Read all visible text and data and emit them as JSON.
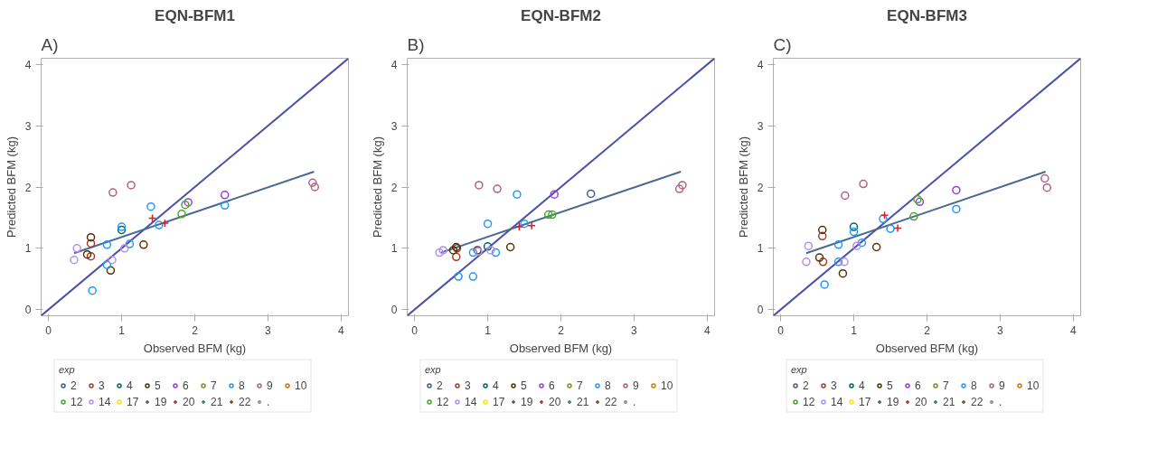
{
  "chart_data": [
    {
      "type": "scatter",
      "title": "EQN-BFM1",
      "annotations": [
        "A)"
      ],
      "xlabel": "Observed BFM (kg)",
      "ylabel": "Predicted BFM (kg)",
      "xlim": [
        -0.1,
        4.1
      ],
      "ylim": [
        -0.1,
        4.1
      ],
      "xticks": [
        0,
        1,
        2,
        3,
        4
      ],
      "yticks": [
        0,
        1,
        2,
        3,
        4
      ],
      "grid": false,
      "legend": "bottom",
      "legend_title": "exp",
      "series": [
        {
          "type": "line",
          "color": "#4a4fa8",
          "x": [
            -0.1,
            4.1
          ],
          "values": [
            -0.1,
            4.1
          ]
        },
        {
          "type": "line",
          "color": "#4a6a94",
          "x": [
            0.35,
            3.63
          ],
          "values": [
            0.92,
            2.25
          ]
        },
        {
          "name": "2",
          "color": "#445694",
          "marker": "circle"
        },
        {
          "name": "3",
          "color": "#a23a2e",
          "marker": "circle",
          "x": [
            0.58,
            0.58
          ],
          "values": [
            1.08,
            0.87
          ]
        },
        {
          "name": "4",
          "color": "#01665e",
          "marker": "circle",
          "x": [
            1.0
          ],
          "values": [
            1.3
          ]
        },
        {
          "name": "5",
          "color": "#543005",
          "marker": "circle",
          "x": [
            0.58,
            0.53,
            0.85,
            1.3
          ],
          "values": [
            1.18,
            0.9,
            0.64,
            1.06
          ]
        },
        {
          "name": "6",
          "color": "#9d3cdb",
          "marker": "circle",
          "x": [
            1.91,
            2.41
          ],
          "values": [
            1.75,
            1.87
          ]
        },
        {
          "name": "7",
          "color": "#7f8e1f",
          "marker": "circle"
        },
        {
          "name": "8",
          "color": "#2597fa",
          "marker": "circle",
          "x": [
            1.4,
            1.0,
            1.51,
            0.8,
            1.11,
            0.8,
            0.6,
            2.41
          ],
          "values": [
            1.68,
            1.35,
            1.38,
            1.06,
            1.07,
            0.73,
            0.31,
            1.7
          ]
        },
        {
          "name": "9",
          "color": "#b26084",
          "marker": "circle",
          "x": [
            0.88,
            1.13,
            3.61,
            3.64
          ],
          "values": [
            1.91,
            2.03,
            2.07,
            2.0
          ]
        },
        {
          "name": "10",
          "color": "#d17800",
          "marker": "circle"
        },
        {
          "name": "12",
          "color": "#47a82a",
          "marker": "circle",
          "x": [
            1.87,
            1.82
          ],
          "values": [
            1.71,
            1.56
          ]
        },
        {
          "name": "14",
          "color": "#b38ef3",
          "marker": "circle",
          "x": [
            0.39,
            0.35,
            0.87,
            1.04
          ],
          "values": [
            1.0,
            0.81,
            0.81,
            1.0
          ]
        },
        {
          "name": "17",
          "color": "#f9e500",
          "marker": "circle"
        },
        {
          "name": "19",
          "color": "#445694",
          "marker": "cross"
        },
        {
          "name": "20",
          "color": "#c8242b",
          "marker": "cross",
          "x": [
            1.42,
            1.59
          ],
          "values": [
            1.49,
            1.41
          ]
        },
        {
          "name": "21",
          "color": "#2e7d6e",
          "marker": "cross"
        },
        {
          "name": "22",
          "color": "#7a4a1a",
          "marker": "cross"
        },
        {
          "name": ".",
          "color": "#999999",
          "marker": "star"
        }
      ]
    },
    {
      "type": "scatter",
      "title": "EQN-BFM2",
      "annotations": [
        "B)"
      ],
      "xlabel": "Observed BFM (kg)",
      "ylabel": "Predicted BFM (kg)",
      "xlim": [
        -0.1,
        4.1
      ],
      "ylim": [
        -0.1,
        4.1
      ],
      "xticks": [
        0,
        1,
        2,
        3,
        4
      ],
      "yticks": [
        0,
        1,
        2,
        3,
        4
      ],
      "grid": false,
      "legend": "bottom",
      "legend_title": "exp",
      "series": [
        {
          "type": "line",
          "color": "#4a4fa8",
          "x": [
            -0.1,
            4.1
          ],
          "values": [
            -0.1,
            4.1
          ]
        },
        {
          "type": "line",
          "color": "#4a6a94",
          "x": [
            0.36,
            3.64
          ],
          "values": [
            0.93,
            2.25
          ]
        },
        {
          "name": "2",
          "color": "#445694",
          "marker": "circle",
          "x": [
            2.41
          ],
          "values": [
            1.89
          ]
        },
        {
          "name": "3",
          "color": "#a23a2e",
          "marker": "circle",
          "x": [
            0.57,
            0.58
          ],
          "values": [
            0.86,
            1.0
          ]
        },
        {
          "name": "4",
          "color": "#01665e",
          "marker": "circle",
          "x": [
            1.0
          ],
          "values": [
            1.03
          ]
        },
        {
          "name": "5",
          "color": "#543005",
          "marker": "circle",
          "x": [
            1.31,
            0.53,
            0.57,
            0.86
          ],
          "values": [
            1.02,
            0.97,
            1.02,
            0.97
          ]
        },
        {
          "name": "6",
          "color": "#9d3cdb",
          "marker": "circle",
          "x": [
            1.91
          ],
          "values": [
            1.88
          ]
        },
        {
          "name": "7",
          "color": "#7f8e1f",
          "marker": "circle"
        },
        {
          "name": "8",
          "color": "#2597fa",
          "marker": "circle",
          "x": [
            1.4,
            1.0,
            1.5,
            0.8,
            1.11,
            0.6,
            0.8
          ],
          "values": [
            1.88,
            1.4,
            1.4,
            0.93,
            0.93,
            0.54,
            0.54
          ]
        },
        {
          "name": "9",
          "color": "#b26084",
          "marker": "circle",
          "x": [
            0.88,
            1.13,
            3.66,
            3.62
          ],
          "values": [
            2.03,
            1.97,
            2.03,
            1.97
          ]
        },
        {
          "name": "10",
          "color": "#d17800",
          "marker": "circle"
        },
        {
          "name": "12",
          "color": "#47a82a",
          "marker": "circle",
          "x": [
            1.83,
            1.88
          ],
          "values": [
            1.55,
            1.55
          ]
        },
        {
          "name": "14",
          "color": "#b38ef3",
          "marker": "circle",
          "x": [
            0.34,
            0.39,
            1.04,
            0.87
          ],
          "values": [
            0.93,
            0.97,
            0.97,
            0.95
          ]
        },
        {
          "name": "17",
          "color": "#f9e500",
          "marker": "circle"
        },
        {
          "name": "19",
          "color": "#445694",
          "marker": "cross"
        },
        {
          "name": "20",
          "color": "#c8242b",
          "marker": "cross",
          "x": [
            1.43,
            1.6
          ],
          "values": [
            1.35,
            1.37
          ]
        },
        {
          "name": "21",
          "color": "#2e7d6e",
          "marker": "cross"
        },
        {
          "name": "22",
          "color": "#7a4a1a",
          "marker": "cross"
        },
        {
          "name": ".",
          "color": "#999999",
          "marker": "star"
        }
      ]
    },
    {
      "type": "scatter",
      "title": "EQN-BFM3",
      "annotations": [
        "C)"
      ],
      "xlabel": "Observed BFM (kg)",
      "ylabel": "Predicted BFM (kg)",
      "xlim": [
        -0.1,
        4.1
      ],
      "ylim": [
        -0.1,
        4.1
      ],
      "xticks": [
        0,
        1,
        2,
        3,
        4
      ],
      "yticks": [
        0,
        1,
        2,
        3,
        4
      ],
      "grid": false,
      "legend": "bottom",
      "legend_title": "exp",
      "series": [
        {
          "type": "line",
          "color": "#4a4fa8",
          "x": [
            -0.1,
            4.1
          ],
          "values": [
            -0.1,
            4.1
          ]
        },
        {
          "type": "line",
          "color": "#4a6a94",
          "x": [
            0.35,
            3.62
          ],
          "values": [
            0.92,
            2.25
          ]
        },
        {
          "name": "2",
          "color": "#445694",
          "marker": "circle"
        },
        {
          "name": "3",
          "color": "#a23a2e",
          "marker": "circle",
          "x": [
            0.57,
            0.58
          ],
          "values": [
            1.2,
            0.78
          ]
        },
        {
          "name": "4",
          "color": "#01665e",
          "marker": "circle",
          "x": [
            1.0
          ],
          "values": [
            1.35
          ]
        },
        {
          "name": "5",
          "color": "#543005",
          "marker": "circle",
          "x": [
            0.57,
            0.53,
            0.85,
            1.31
          ],
          "values": [
            1.3,
            0.85,
            0.59,
            1.02
          ]
        },
        {
          "name": "6",
          "color": "#9d3cdb",
          "marker": "circle",
          "x": [
            1.9,
            2.4
          ],
          "values": [
            1.76,
            1.95
          ]
        },
        {
          "name": "7",
          "color": "#7f8e1f",
          "marker": "circle"
        },
        {
          "name": "8",
          "color": "#2597fa",
          "marker": "circle",
          "x": [
            1.4,
            1.0,
            1.5,
            0.79,
            1.11,
            0.79,
            0.6,
            2.4
          ],
          "values": [
            1.48,
            1.27,
            1.32,
            1.06,
            1.09,
            0.78,
            0.41,
            1.64
          ]
        },
        {
          "name": "9",
          "color": "#b26084",
          "marker": "circle",
          "x": [
            0.88,
            1.13,
            3.61,
            3.64
          ],
          "values": [
            1.86,
            2.05,
            2.14,
            1.99
          ]
        },
        {
          "name": "10",
          "color": "#d17800",
          "marker": "circle"
        },
        {
          "name": "12",
          "color": "#47a82a",
          "marker": "circle",
          "x": [
            1.87,
            1.82
          ],
          "values": [
            1.8,
            1.52
          ]
        },
        {
          "name": "14",
          "color": "#b38ef3",
          "marker": "circle",
          "x": [
            0.38,
            0.35,
            0.87,
            1.04
          ],
          "values": [
            1.04,
            0.78,
            0.78,
            1.04
          ]
        },
        {
          "name": "17",
          "color": "#f9e500",
          "marker": "circle"
        },
        {
          "name": "19",
          "color": "#445694",
          "marker": "cross"
        },
        {
          "name": "20",
          "color": "#c8242b",
          "marker": "cross",
          "x": [
            1.42,
            1.6
          ],
          "values": [
            1.54,
            1.33
          ]
        },
        {
          "name": "21",
          "color": "#2e7d6e",
          "marker": "cross"
        },
        {
          "name": "22",
          "color": "#7a4a1a",
          "marker": "cross"
        },
        {
          "name": ".",
          "color": "#999999",
          "marker": "star"
        }
      ]
    }
  ]
}
